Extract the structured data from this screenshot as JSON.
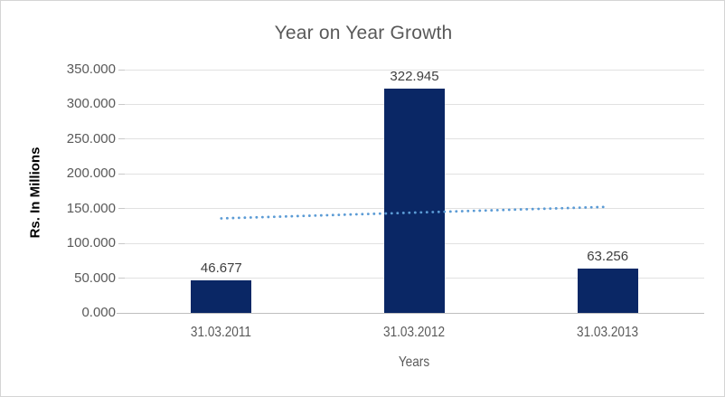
{
  "chart": {
    "title": "Year on Year Growth",
    "y_axis_title": "Rs. In Millions",
    "x_axis_title": "Years"
  },
  "chart_data": {
    "type": "bar",
    "title": "Year on Year Growth",
    "xlabel": "Years",
    "ylabel": "Rs. In Millions",
    "categories": [
      "31.03.2011",
      "31.03.2012",
      "31.03.2013"
    ],
    "values": [
      46.677,
      322.945,
      63.256
    ],
    "data_labels": [
      "46.677",
      "322.945",
      "63.256"
    ],
    "ylim": [
      0,
      350
    ],
    "y_tick_step": 50,
    "y_ticks": {
      "values": [
        0,
        50,
        100,
        150,
        200,
        250,
        300,
        350
      ],
      "labels": [
        "0.000",
        "50.000",
        "100.000",
        "150.000",
        "200.000",
        "250.000",
        "300.000",
        "350.000"
      ]
    },
    "grid": true,
    "legend": "none",
    "trendline": {
      "type": "linear",
      "style": "dotted",
      "start_value": 136.0,
      "end_value": 152.6
    }
  },
  "colors": {
    "bar": "#0a2765",
    "trendline": "#5b9bd5",
    "title_text": "#595959",
    "axis_text": "#595959",
    "data_label_text": "#3f3f3f",
    "y_axis_title_text": "#000000",
    "gridline": "#e1e1e1",
    "axis_line": "#bfbfbf",
    "chart_border": "#d5d5d5",
    "background": "#ffffff"
  }
}
